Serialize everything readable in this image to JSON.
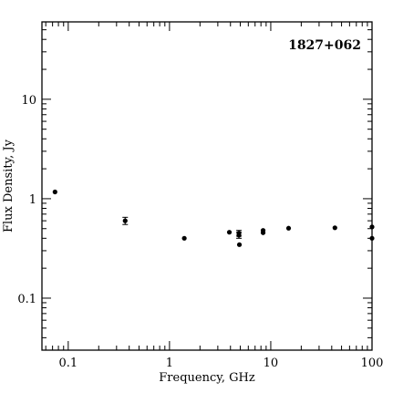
{
  "chart_data": {
    "type": "scatter",
    "title": "1827+062",
    "xlabel": "Frequency, GHz",
    "ylabel": "Flux Density, Jy",
    "xscale": "log",
    "yscale": "log",
    "xlim": [
      0.055,
      100
    ],
    "ylim": [
      0.03,
      60
    ],
    "grid": false,
    "x_tick_labels": [
      "0.1",
      "1",
      "10",
      "100"
    ],
    "y_tick_labels": [
      "0.1",
      "1",
      "10"
    ],
    "points": [
      {
        "x": 0.074,
        "y": 1.17
      },
      {
        "x": 0.365,
        "y": 0.6,
        "err": 0.05
      },
      {
        "x": 1.4,
        "y": 0.4
      },
      {
        "x": 3.9,
        "y": 0.46
      },
      {
        "x": 4.85,
        "y": 0.45,
        "err": 0.03
      },
      {
        "x": 4.85,
        "y": 0.43,
        "err": 0.03
      },
      {
        "x": 4.9,
        "y": 0.345
      },
      {
        "x": 8.4,
        "y": 0.48
      },
      {
        "x": 8.4,
        "y": 0.455
      },
      {
        "x": 15,
        "y": 0.505
      },
      {
        "x": 43,
        "y": 0.51
      },
      {
        "x": 100,
        "y": 0.52
      },
      {
        "x": 100,
        "y": 0.4
      }
    ]
  }
}
